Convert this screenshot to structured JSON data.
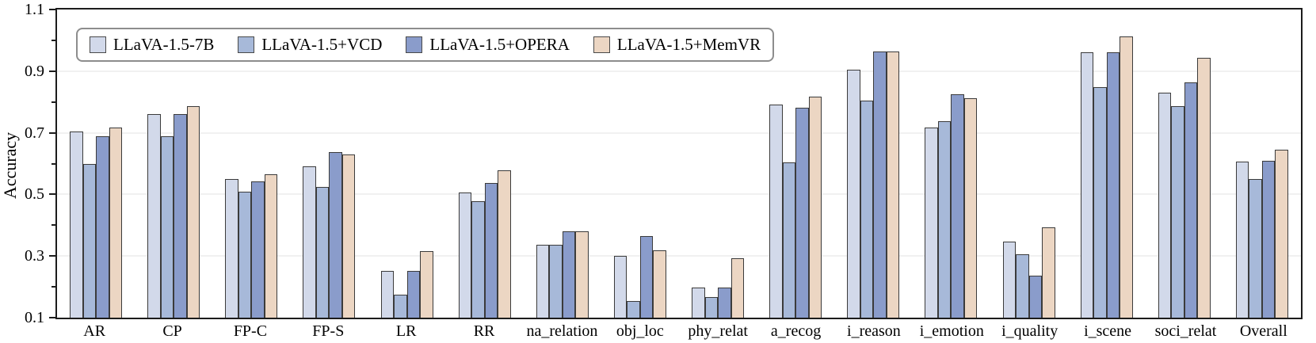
{
  "chart_data": {
    "type": "bar",
    "title": "",
    "xlabel": "",
    "ylabel": "Accuracy",
    "ylim": [
      0.1,
      1.1
    ],
    "yticks": [
      0.1,
      0.3,
      0.5,
      0.7,
      0.9,
      1.1
    ],
    "ytick_labels": [
      "0.1",
      "0.3",
      "0.5",
      "0.7",
      "0.9",
      "1.1"
    ],
    "minor_yticks": [
      0.2,
      0.4,
      0.6,
      0.8,
      1.0
    ],
    "grid_values": [
      0.3,
      0.5,
      0.7,
      0.9
    ],
    "grid": true,
    "legend_position": "top-left",
    "bar_edge_color": "#3b3b3b",
    "categories": [
      "AR",
      "CP",
      "FP-C",
      "FP-S",
      "LR",
      "RR",
      "na_relation",
      "obj_loc",
      "phy_relat",
      "a_recog",
      "i_reason",
      "i_emotion",
      "i_quality",
      "i_scene",
      "soci_relat",
      "Overall"
    ],
    "series": [
      {
        "name": "LLaVA-1.5-7B",
        "color": "#d2d9ea",
        "values": [
          0.705,
          0.76,
          0.551,
          0.592,
          0.252,
          0.507,
          0.336,
          0.3,
          0.199,
          0.792,
          0.904,
          0.718,
          0.347,
          0.961,
          0.83,
          0.607
        ]
      },
      {
        "name": "LLaVA-1.5+VCD",
        "color": "#a7b9d9",
        "values": [
          0.6,
          0.69,
          0.51,
          0.524,
          0.175,
          0.478,
          0.336,
          0.153,
          0.167,
          0.604,
          0.804,
          0.737,
          0.306,
          0.847,
          0.786,
          0.549
        ]
      },
      {
        "name": "LLaVA-1.5+OPERA",
        "color": "#8a9ccb",
        "values": [
          0.69,
          0.76,
          0.543,
          0.638,
          0.252,
          0.538,
          0.38,
          0.365,
          0.199,
          0.781,
          0.965,
          0.824,
          0.237,
          0.961,
          0.863,
          0.61
        ]
      },
      {
        "name": "LLaVA-1.5+MemVR",
        "color": "#ecd6c3",
        "values": [
          0.718,
          0.787,
          0.565,
          0.63,
          0.316,
          0.577,
          0.38,
          0.319,
          0.294,
          0.817,
          0.965,
          0.813,
          0.393,
          1.012,
          0.944,
          0.646
        ]
      }
    ]
  }
}
